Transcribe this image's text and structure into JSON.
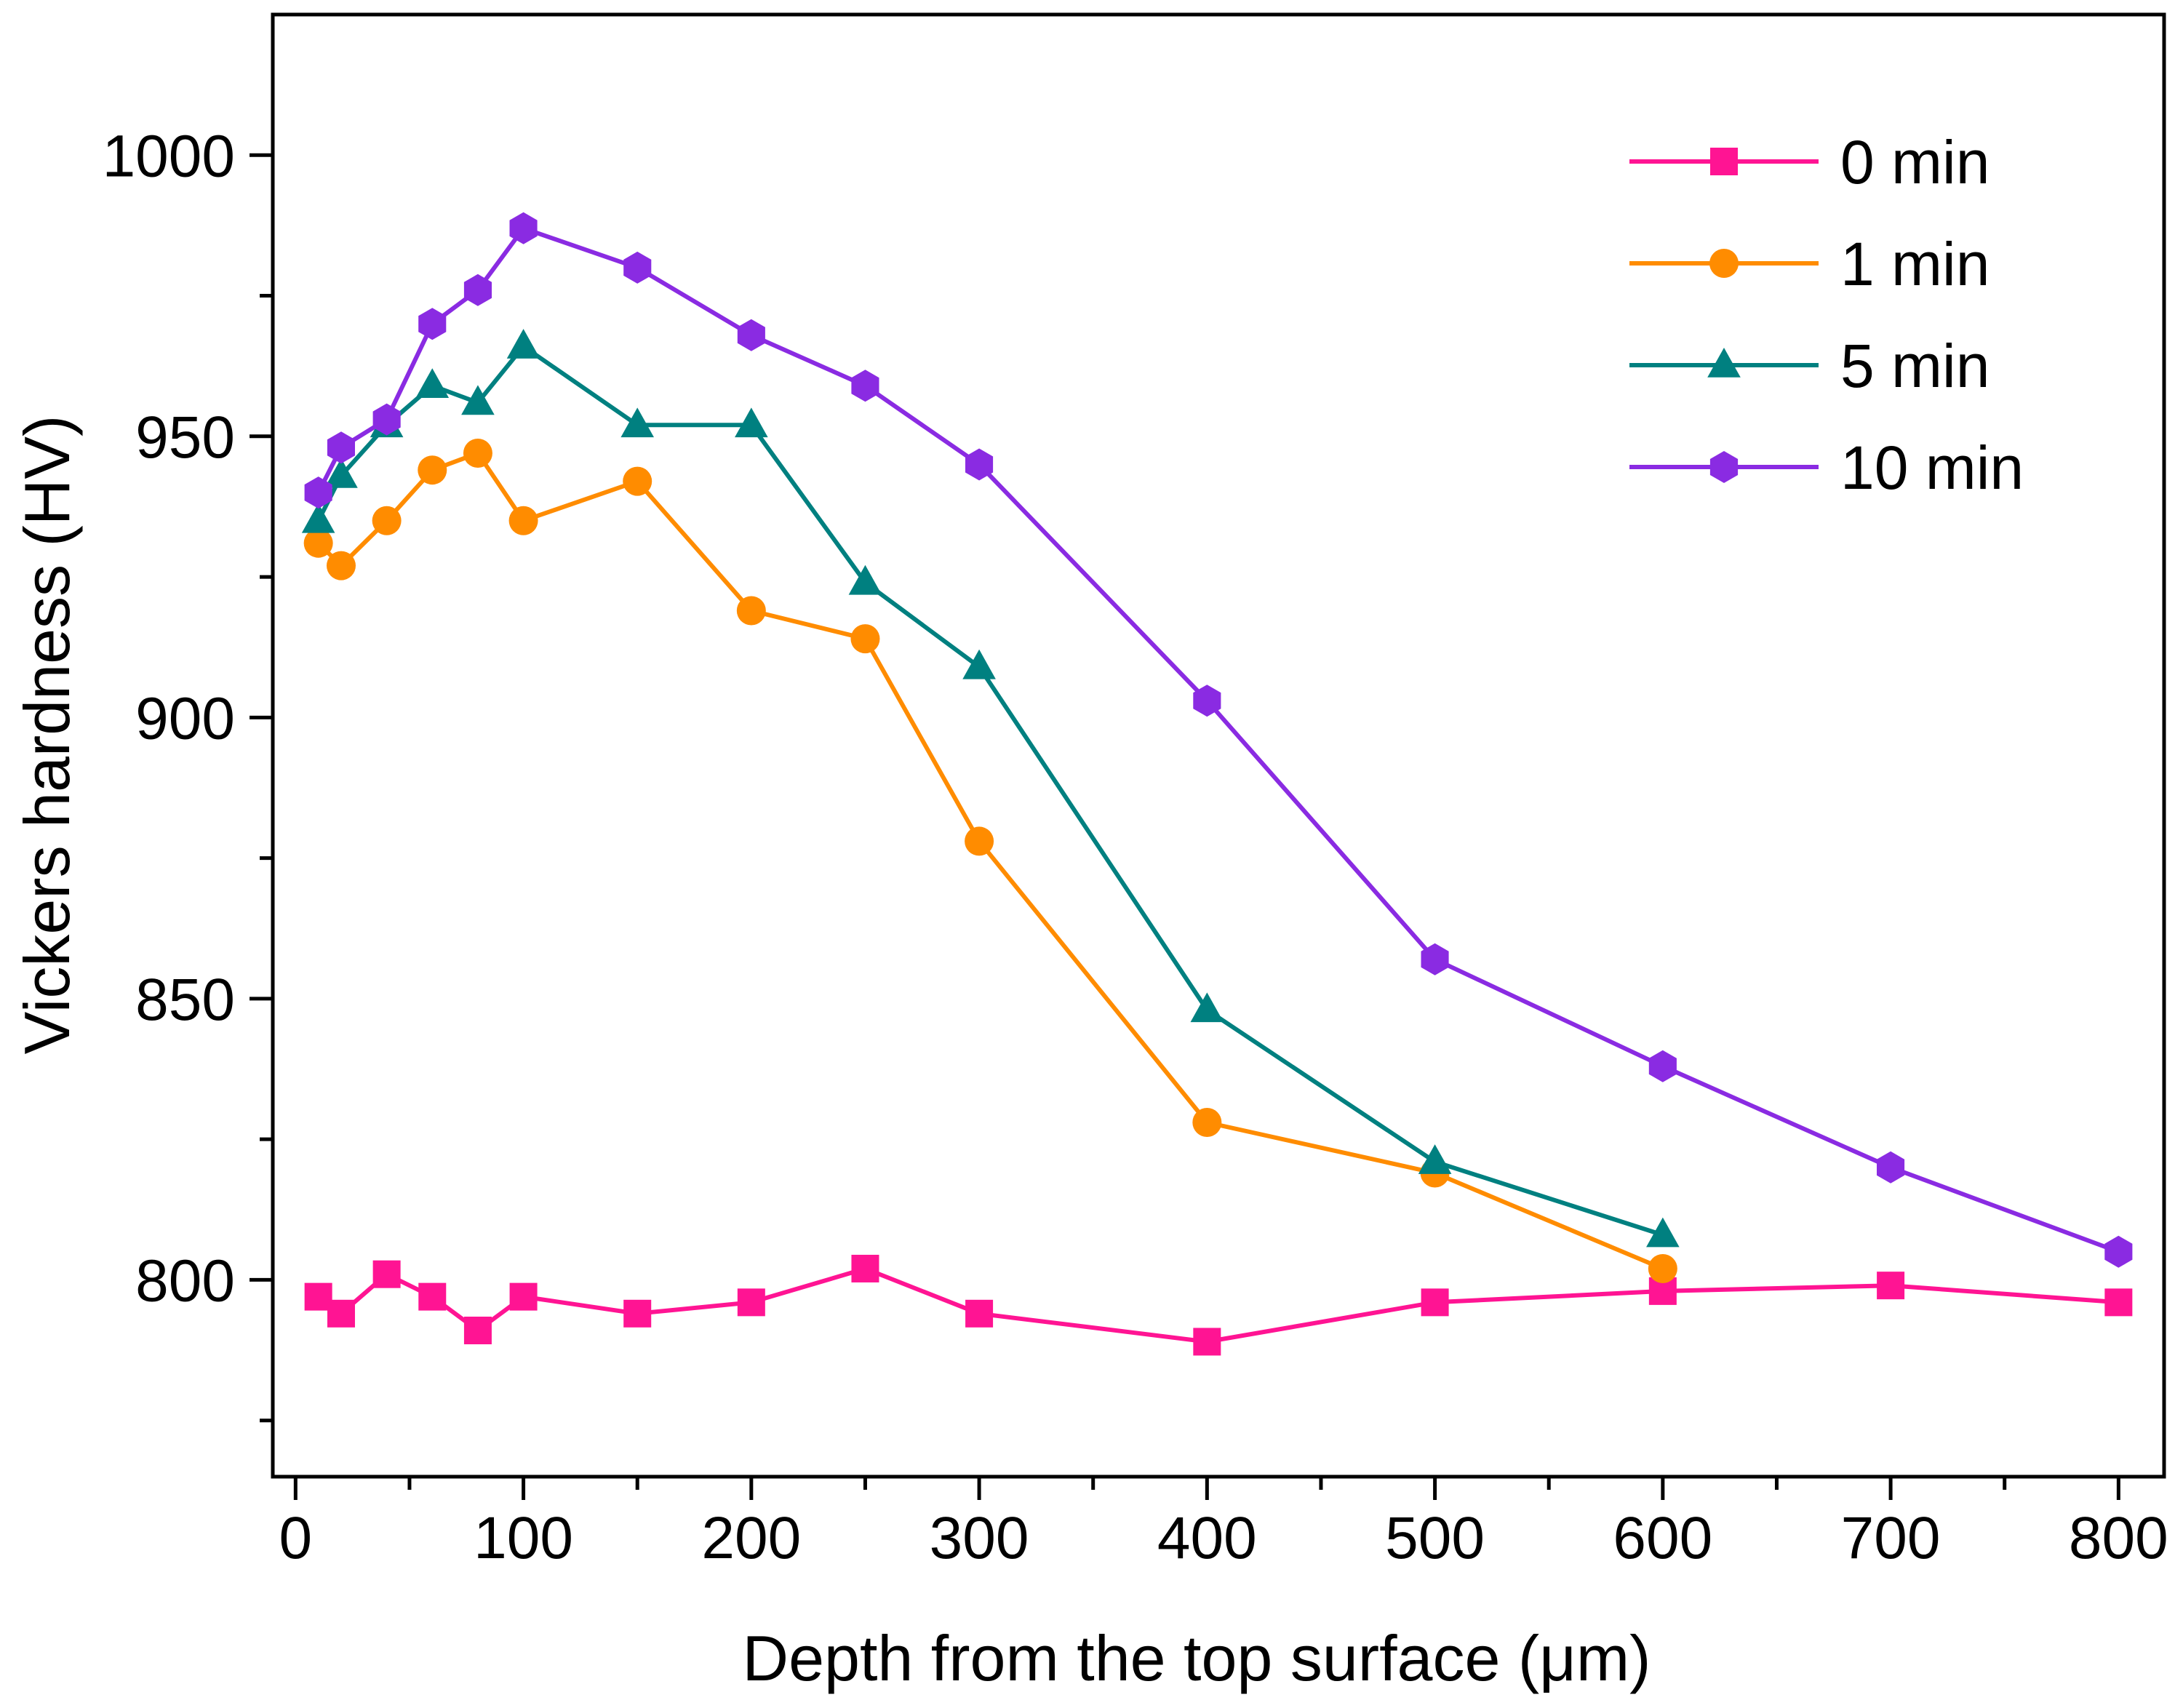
{
  "chart_data": {
    "type": "line",
    "title": "",
    "xlabel": "Depth from the top surface (μm)",
    "ylabel": "Vickers hardness (HV)",
    "xlim": [
      -10,
      820
    ],
    "ylim": [
      765,
      1025
    ],
    "x_ticks": [
      0,
      100,
      200,
      300,
      400,
      500,
      600,
      700,
      800
    ],
    "y_ticks": [
      800,
      850,
      900,
      950,
      1000
    ],
    "x_tick_labels": [
      "0",
      "100",
      "200",
      "300",
      "400",
      "500",
      "600",
      "700",
      "800"
    ],
    "y_tick_labels": [
      "800",
      "850",
      "900",
      "950",
      "1000"
    ],
    "grid": false,
    "legend_position": "top-right",
    "series": [
      {
        "name": "0 min",
        "color": "#ff1493",
        "marker": "square",
        "x": [
          10,
          20,
          40,
          60,
          80,
          100,
          150,
          200,
          250,
          300,
          400,
          500,
          600,
          700,
          800
        ],
        "y": [
          797,
          794,
          801,
          797,
          791,
          797,
          794,
          796,
          802,
          794,
          789,
          796,
          798,
          799,
          796
        ]
      },
      {
        "name": "1 min",
        "color": "#ff8c00",
        "marker": "circle",
        "x": [
          10,
          20,
          40,
          60,
          80,
          100,
          150,
          200,
          250,
          300,
          400,
          500,
          600
        ],
        "y": [
          931,
          927,
          935,
          944,
          947,
          935,
          942,
          919,
          914,
          878,
          828,
          819,
          802
        ]
      },
      {
        "name": "5 min",
        "color": "#008080",
        "marker": "triangle",
        "x": [
          10,
          20,
          40,
          60,
          80,
          100,
          150,
          200,
          250,
          300,
          400,
          500,
          600
        ],
        "y": [
          935,
          943,
          952,
          959,
          956,
          966,
          952,
          952,
          924,
          909,
          848,
          821,
          808
        ]
      },
      {
        "name": "10 min",
        "color": "#8a2be2",
        "marker": "hexagon",
        "x": [
          10,
          20,
          40,
          60,
          80,
          100,
          150,
          200,
          250,
          300,
          400,
          500,
          600,
          700,
          800
        ],
        "y": [
          940,
          948,
          953,
          970,
          976,
          987,
          980,
          968,
          959,
          945,
          903,
          857,
          838,
          820,
          805
        ]
      }
    ]
  }
}
